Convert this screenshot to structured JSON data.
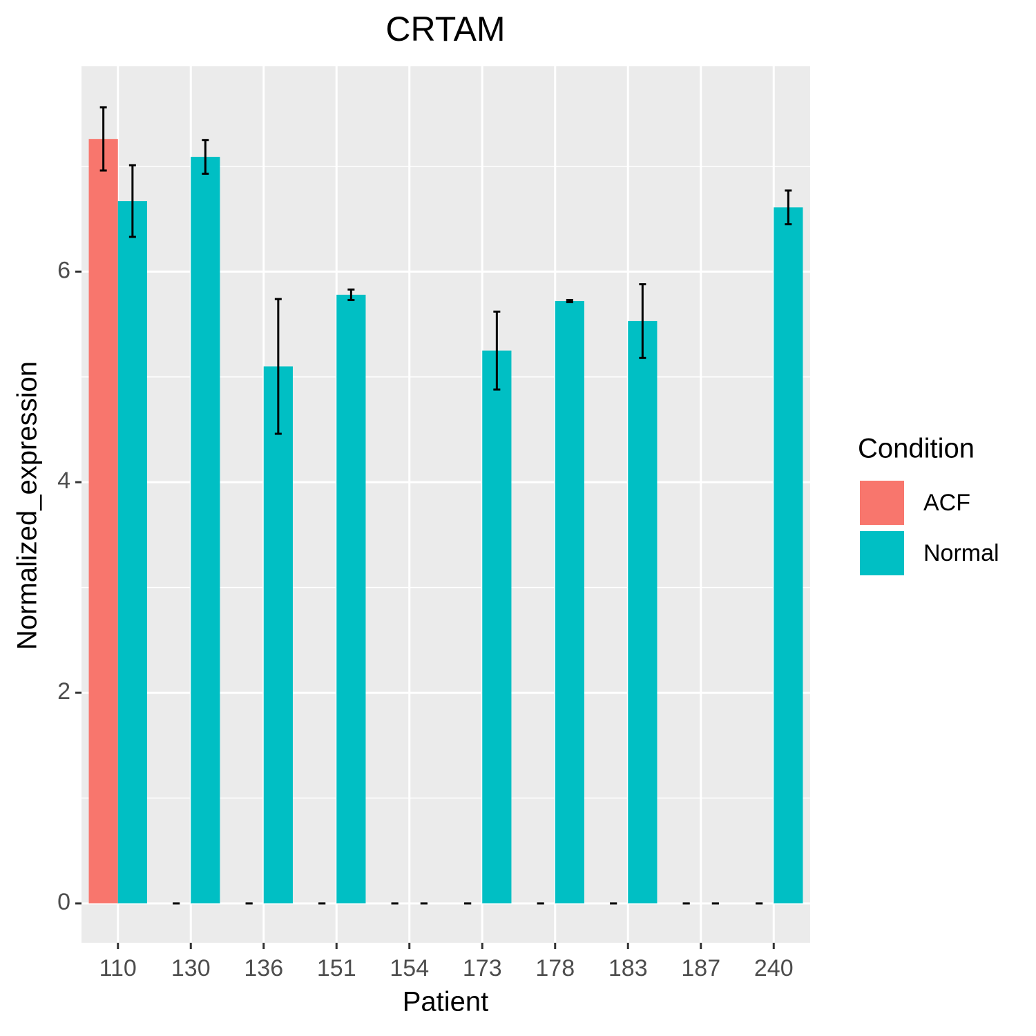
{
  "chart_data": {
    "type": "bar",
    "title": "CRTAM",
    "x_label": "Patient",
    "y_label": "Normalized_expression",
    "categories": [
      "110",
      "130",
      "136",
      "151",
      "154",
      "173",
      "178",
      "183",
      "187",
      "240"
    ],
    "legend_title": "Condition",
    "series": [
      {
        "name": "ACF",
        "color": "#f8766d",
        "values": [
          7.26,
          0,
          0,
          0,
          0,
          0,
          0,
          0,
          0,
          0
        ],
        "errors": [
          0.3,
          0,
          0,
          0,
          0,
          0,
          0,
          0,
          0,
          0
        ]
      },
      {
        "name": "Normal",
        "color": "#00bfc4",
        "values": [
          6.67,
          7.09,
          5.1,
          5.78,
          0,
          5.25,
          5.72,
          5.53,
          0,
          6.61
        ],
        "errors": [
          0.34,
          0.16,
          0.64,
          0.05,
          0,
          0.37,
          0.01,
          0.35,
          0,
          0.16
        ]
      }
    ],
    "ylim": [
      -0.374,
      7.95
    ],
    "yticks": [
      0,
      2,
      4,
      6
    ],
    "y_minor_grid": [
      1,
      3,
      5,
      7
    ],
    "grid": true
  }
}
